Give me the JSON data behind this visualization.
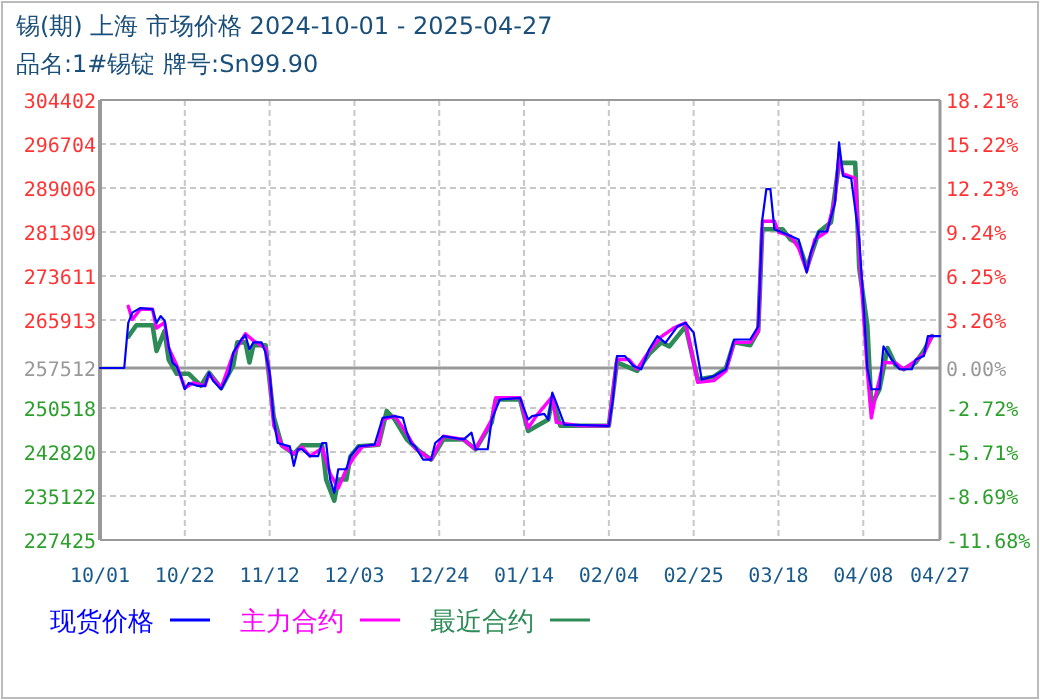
{
  "chart_data": {
    "type": "line",
    "title": "锡(期) 上海 市场价格 2024-10-01 - 2025-04-27",
    "subtitle": "品名:1#锡锭 牌号:Sn99.90",
    "xlim": [
      "2024-10-01",
      "2025-04-27"
    ],
    "xticks": [
      {
        "value": "2024-10-01",
        "label": "10/01"
      },
      {
        "value": "2024-10-22",
        "label": "10/22"
      },
      {
        "value": "2024-11-12",
        "label": "11/12"
      },
      {
        "value": "2024-12-03",
        "label": "12/03"
      },
      {
        "value": "2024-12-24",
        "label": "12/24"
      },
      {
        "value": "2025-01-14",
        "label": "01/14"
      },
      {
        "value": "2025-02-04",
        "label": "02/04"
      },
      {
        "value": "2025-02-25",
        "label": "02/25"
      },
      {
        "value": "2025-03-18",
        "label": "03/18"
      },
      {
        "value": "2025-04-08",
        "label": "04/08"
      },
      {
        "value": "2025-04-27",
        "label": "04/27"
      }
    ],
    "ylim": [
      227425,
      304402
    ],
    "yticks": [
      227425,
      235122,
      242820,
      250518,
      257512,
      265913,
      273611,
      281309,
      289006,
      296704,
      304402
    ],
    "y2lim": [
      -11.68,
      18.21
    ],
    "y2ticks": [
      {
        "value": -11.68,
        "label": "-11.68%"
      },
      {
        "value": -8.69,
        "label": "-8.69%"
      },
      {
        "value": -5.71,
        "label": "-5.71%"
      },
      {
        "value": -2.72,
        "label": "-2.72%"
      },
      {
        "value": 0,
        "label": "0.00%"
      },
      {
        "value": 3.26,
        "label": "3.26%"
      },
      {
        "value": 6.25,
        "label": "6.25%"
      },
      {
        "value": 9.24,
        "label": "9.24%"
      },
      {
        "value": 12.23,
        "label": "12.23%"
      },
      {
        "value": 15.22,
        "label": "15.22%"
      },
      {
        "value": 18.21,
        "label": "18.21%"
      }
    ],
    "ref_lines": [
      {
        "axis": "y",
        "value": 257512,
        "color": "#999999"
      }
    ],
    "grid": true,
    "legend": "bottom",
    "line_style": "solid",
    "series": [
      {
        "name": "现货价格",
        "color": "#0000ff",
        "x": [
          "2024-10-01",
          "2024-10-07",
          "2024-10-08",
          "2024-10-09",
          "2024-10-11",
          "2024-10-14",
          "2024-10-15",
          "2024-10-16",
          "2024-10-17",
          "2024-10-18",
          "2024-10-19",
          "2024-10-20",
          "2024-10-21",
          "2024-10-22",
          "2024-10-23",
          "2024-10-25",
          "2024-10-27",
          "2024-10-28",
          "2024-10-29",
          "2024-10-31",
          "2024-11-02",
          "2024-11-03",
          "2024-11-05",
          "2024-11-06",
          "2024-11-07",
          "2024-11-08",
          "2024-11-10",
          "2024-11-11",
          "2024-11-12",
          "2024-11-13",
          "2024-11-14",
          "2024-11-17",
          "2024-11-18",
          "2024-11-19",
          "2024-11-20",
          "2024-11-22",
          "2024-11-24",
          "2024-11-25",
          "2024-11-26",
          "2024-11-27",
          "2024-11-28",
          "2024-11-29",
          "2024-12-01",
          "2024-12-02",
          "2024-12-04",
          "2024-12-08",
          "2024-12-10",
          "2024-12-13",
          "2024-12-15",
          "2024-12-16",
          "2024-12-17",
          "2024-12-18",
          "2024-12-20",
          "2024-12-22",
          "2024-12-23",
          "2024-12-25",
          "2024-12-30",
          "2025-01-01",
          "2025-01-02",
          "2025-01-05",
          "2025-01-06",
          "2025-01-08",
          "2025-01-13",
          "2025-01-15",
          "2025-01-16",
          "2025-01-19",
          "2025-01-20",
          "2025-01-21",
          "2025-01-22",
          "2025-01-24",
          "2025-02-04",
          "2025-02-05",
          "2025-02-06",
          "2025-02-08",
          "2025-02-10",
          "2025-02-12",
          "2025-02-14",
          "2025-02-16",
          "2025-02-18",
          "2025-02-21",
          "2025-02-23",
          "2025-02-25",
          "2025-02-27",
          "2025-03-02",
          "2025-03-05",
          "2025-03-07",
          "2025-03-11",
          "2025-03-13",
          "2025-03-14",
          "2025-03-15",
          "2025-03-16",
          "2025-03-17",
          "2025-03-21",
          "2025-03-23",
          "2025-03-25",
          "2025-03-26",
          "2025-03-28",
          "2025-03-30",
          "2025-04-01",
          "2025-04-02",
          "2025-04-03",
          "2025-04-05",
          "2025-04-07",
          "2025-04-08",
          "2025-04-09",
          "2025-04-10",
          "2025-04-12",
          "2025-04-13",
          "2025-04-15",
          "2025-04-17",
          "2025-04-20",
          "2025-04-21",
          "2025-04-23",
          "2025-04-24",
          "2025-04-27"
        ],
        "values": [
          257512,
          257512,
          265400,
          267200,
          268000,
          267800,
          265400,
          266600,
          265800,
          261300,
          258400,
          257800,
          256100,
          253800,
          254900,
          254400,
          254400,
          256700,
          255300,
          253800,
          256700,
          260200,
          262500,
          263300,
          260800,
          262000,
          262000,
          260200,
          256700,
          248500,
          244400,
          243800,
          240400,
          243300,
          243300,
          242100,
          242100,
          244400,
          244400,
          238000,
          235700,
          239800,
          239800,
          242100,
          243800,
          244100,
          248800,
          249100,
          248800,
          246200,
          244400,
          243800,
          241500,
          241500,
          244400,
          245600,
          245000,
          246200,
          243300,
          243300,
          248500,
          252000,
          252300,
          248500,
          249100,
          249500,
          248500,
          253200,
          251400,
          247600,
          247400,
          252000,
          259600,
          259600,
          257900,
          257300,
          260800,
          263100,
          261900,
          264800,
          265400,
          263700,
          255500,
          256100,
          257300,
          262500,
          262500,
          264800,
          283500,
          288800,
          288800,
          281800,
          280600,
          280000,
          274200,
          277700,
          281400,
          281400,
          286400,
          297000,
          291100,
          290700,
          280000,
          269500,
          257500,
          253800,
          253800,
          261300,
          259000,
          257300,
          257300,
          259000,
          259600,
          263100,
          263100
        ]
      },
      {
        "name": "主力合约",
        "color": "#ff00ff",
        "x": [
          "2024-10-08",
          "2024-10-09",
          "2024-10-11",
          "2024-10-14",
          "2024-10-15",
          "2024-10-17",
          "2024-10-18",
          "2024-10-20",
          "2024-10-22",
          "2024-10-24",
          "2024-10-27",
          "2024-10-28",
          "2024-10-31",
          "2024-11-03",
          "2024-11-06",
          "2024-11-08",
          "2024-11-11",
          "2024-11-12",
          "2024-11-13",
          "2024-11-15",
          "2024-11-18",
          "2024-11-20",
          "2024-11-22",
          "2024-11-25",
          "2024-11-27",
          "2024-11-29",
          "2024-12-01",
          "2024-12-03",
          "2024-12-05",
          "2024-12-09",
          "2024-12-10",
          "2024-12-13",
          "2024-12-16",
          "2024-12-18",
          "2024-12-22",
          "2024-12-25",
          "2024-12-30",
          "2025-01-02",
          "2025-01-06",
          "2025-01-07",
          "2025-01-13",
          "2025-01-15",
          "2025-01-17",
          "2025-01-21",
          "2025-01-22",
          "2025-01-28",
          "2025-02-04",
          "2025-02-06",
          "2025-02-09",
          "2025-02-11",
          "2025-02-14",
          "2025-02-17",
          "2025-02-20",
          "2025-02-23",
          "2025-02-26",
          "2025-03-02",
          "2025-03-05",
          "2025-03-07",
          "2025-03-11",
          "2025-03-13",
          "2025-03-14",
          "2025-03-17",
          "2025-03-18",
          "2025-03-21",
          "2025-03-23",
          "2025-03-25",
          "2025-03-27",
          "2025-03-30",
          "2025-04-01",
          "2025-04-02",
          "2025-04-03",
          "2025-04-06",
          "2025-04-07",
          "2025-04-09",
          "2025-04-10",
          "2025-04-11",
          "2025-04-13",
          "2025-04-16",
          "2025-04-18",
          "2025-04-21",
          "2025-04-23",
          "2025-04-25"
        ],
        "values": [
          268300,
          266000,
          267800,
          267800,
          264500,
          265500,
          261000,
          258000,
          254000,
          254900,
          254400,
          256500,
          254000,
          260000,
          263500,
          262300,
          261000,
          256000,
          247500,
          244000,
          242500,
          243700,
          242100,
          243500,
          239000,
          236500,
          239800,
          242000,
          243800,
          244100,
          248500,
          249100,
          246000,
          243500,
          241500,
          245600,
          245000,
          243300,
          248500,
          252300,
          252300,
          247000,
          249100,
          252500,
          248000,
          247400,
          247400,
          259000,
          259000,
          257300,
          260500,
          263000,
          264500,
          265400,
          255000,
          255300,
          257000,
          262000,
          262000,
          264000,
          283200,
          283200,
          281300,
          280600,
          278500,
          274500,
          280000,
          281400,
          287000,
          295000,
          291500,
          290700,
          278000,
          257000,
          248800,
          252500,
          258500,
          258400,
          257300,
          258800,
          260000,
          263100
        ]
      },
      {
        "name": "最近合约",
        "color": "#2e8b57",
        "x": [
          "2024-10-08",
          "2024-10-10",
          "2024-10-14",
          "2024-10-15",
          "2024-10-17",
          "2024-10-18",
          "2024-10-20",
          "2024-10-23",
          "2024-10-26",
          "2024-10-28",
          "2024-10-31",
          "2024-11-03",
          "2024-11-04",
          "2024-11-06",
          "2024-11-07",
          "2024-11-08",
          "2024-11-11",
          "2024-11-13",
          "2024-11-15",
          "2024-11-18",
          "2024-11-20",
          "2024-11-25",
          "2024-11-26",
          "2024-11-28",
          "2024-11-29",
          "2024-12-01",
          "2024-12-02",
          "2024-12-04",
          "2024-12-09",
          "2024-12-11",
          "2024-12-13",
          "2024-12-16",
          "2024-12-19",
          "2024-12-22",
          "2024-12-25",
          "2024-12-30",
          "2025-01-02",
          "2025-01-06",
          "2025-01-07",
          "2025-01-13",
          "2025-01-15",
          "2025-01-20",
          "2025-01-21",
          "2025-01-23",
          "2025-02-04",
          "2025-02-06",
          "2025-02-11",
          "2025-02-14",
          "2025-02-17",
          "2025-02-19",
          "2025-02-23",
          "2025-02-26",
          "2025-03-02",
          "2025-03-05",
          "2025-03-07",
          "2025-03-11",
          "2025-03-13",
          "2025-03-14",
          "2025-03-19",
          "2025-03-21",
          "2025-03-23",
          "2025-03-25",
          "2025-03-28",
          "2025-03-31",
          "2025-04-02",
          "2025-04-06",
          "2025-04-07",
          "2025-04-09",
          "2025-04-10",
          "2025-04-12",
          "2025-04-14",
          "2025-04-16",
          "2025-04-18",
          "2025-04-21",
          "2025-04-23",
          "2025-04-25"
        ],
        "values": [
          263000,
          265000,
          265000,
          260500,
          264000,
          259000,
          256500,
          256500,
          254400,
          256700,
          254000,
          258000,
          262000,
          262000,
          258500,
          261500,
          261500,
          249000,
          244000,
          242500,
          244000,
          244000,
          238000,
          234300,
          238000,
          238000,
          242000,
          243800,
          244100,
          250000,
          248500,
          245000,
          243000,
          241500,
          245000,
          245000,
          243300,
          248000,
          252000,
          252000,
          246500,
          248500,
          252000,
          247400,
          247400,
          258500,
          257000,
          260000,
          262000,
          261300,
          264800,
          255500,
          256000,
          257500,
          262000,
          261500,
          264000,
          281800,
          281800,
          280000,
          279300,
          275000,
          281300,
          283000,
          293400,
          293400,
          275000,
          265000,
          250900,
          253800,
          261000,
          258000,
          257300,
          258500,
          260500,
          263100
        ]
      }
    ]
  }
}
